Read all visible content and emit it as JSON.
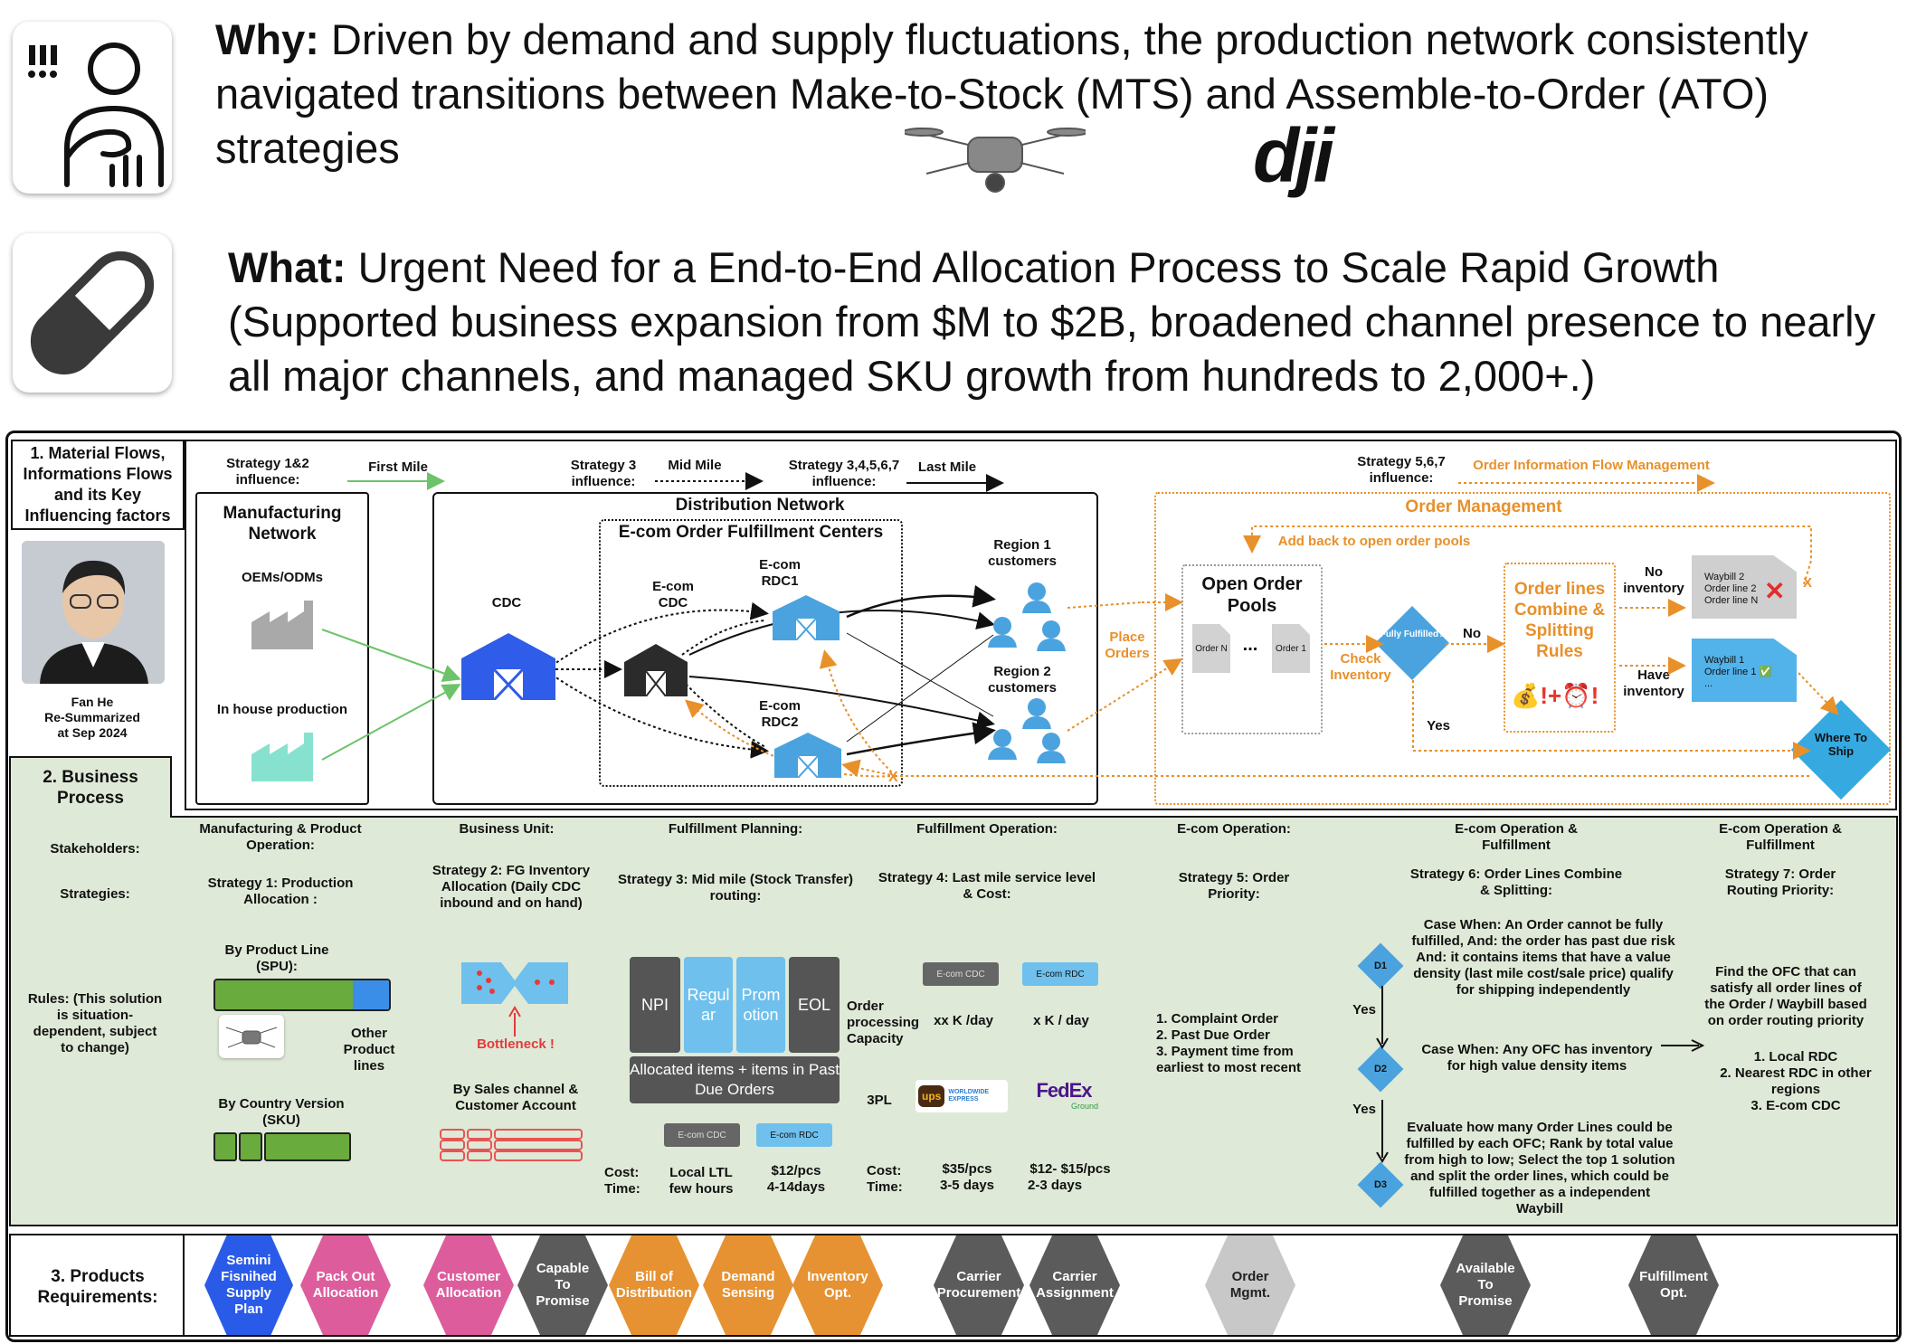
{
  "header": {
    "why_label": "Why:",
    "why_text": " Driven by demand and supply fluctuations, the production network consistently navigated transitions between Make-to-Stock (MTS) and Assemble-to-Order (ATO) strategies",
    "what_label": "What:",
    "what_text": " Urgent Need for a End-to-End Allocation Process to Scale Rapid Growth (Supported business expansion from $M to $2B, broadened channel presence to nearly all major channels, and managed SKU growth from hundreds to 2,000+.)",
    "brand_logo": "dji"
  },
  "sections": {
    "s1": "1. Material Flows, Informations Flows and its Key Influencing factors",
    "s2": "2. Business Process",
    "s3": "3. Products Requirements:"
  },
  "author": {
    "name": "Fan He",
    "line2": "Re-Summarized",
    "line3": "at Sep 2024"
  },
  "flows": {
    "strat12": "Strategy 1&2 influence:",
    "first_mile": "First Mile",
    "strat3": "Strategy 3 influence:",
    "mid_mile": "Mid Mile",
    "strat34567": "Strategy 3,4,5,6,7 influence:",
    "last_mile": "Last Mile",
    "strat567": "Strategy 5,6,7 influence:",
    "oifm": "Order Information Flow Management"
  },
  "network": {
    "mfg_title": "Manufacturing Network",
    "oems": "OEMs/ODMs",
    "inhouse": "In house production",
    "dist_title": "Distribution Network",
    "efc_title": "E-com Order Fulfillment Centers",
    "cdc": "CDC",
    "ecom_cdc": "E-com CDC",
    "rdc1": "E-com RDC1",
    "rdc2": "E-com RDC2",
    "region1": "Region 1 customers",
    "region2": "Region 2 customers"
  },
  "order_mgmt": {
    "title": "Order Management",
    "add_back": "Add back to open order pools",
    "place_orders": "Place Orders",
    "pools": "Open Order Pools",
    "order_n": "Order N",
    "order_1": "Order 1",
    "dots": "...",
    "check_inventory": "Check Inventory",
    "fully": "Fully Fulfilled?",
    "no": "No",
    "yes": "Yes",
    "rules": "Order lines Combine & Splitting Rules",
    "no_inv": "No inventory",
    "have_inv": "Have inventory",
    "wb2_l1": "Waybill 2",
    "wb2_l2": "Order line 2",
    "wb2_l3": "Order line N",
    "wb1_l1": "Waybill 1",
    "wb1_l2": "Order line 1 ✅",
    "wb1_l3": "...",
    "where": "Where To Ship",
    "x_mark": "X"
  },
  "bp": {
    "stakeholders": "Stakeholders:",
    "strategies": "Strategies:",
    "rules": "Rules: (This solution is situation-dependent, subject to change)",
    "cols": [
      {
        "stake": "Manufacturing & Product Operation:",
        "strat": "Strategy 1: Production Allocation :"
      },
      {
        "stake": "Business Unit:",
        "strat": "Strategy 2: FG Inventory Allocation (Daily CDC inbound and on hand)"
      },
      {
        "stake": "Fulfillment Planning:",
        "strat": "Strategy 3: Mid mile (Stock Transfer) routing:"
      },
      {
        "stake": "Fulfillment Operation:",
        "strat": "Strategy 4: Last mile service level & Cost:"
      },
      {
        "stake": "E-com Operation:",
        "strat": "Strategy 5: Order Priority:"
      },
      {
        "stake": "E-com Operation & Fulfillment",
        "strat": "Strategy 6: Order Lines Combine & Splitting:"
      },
      {
        "stake": "E-com Operation & Fulfillment",
        "strat": "Strategy 7: Order Routing Priority:"
      }
    ],
    "s1_pl": "By Product Line (SPU):",
    "s1_other": "Other Product lines",
    "s1_cv": "By Country Version (SKU)",
    "s2_bottleneck": "Bottleneck !",
    "s2_sales": "By Sales channel & Customer Account",
    "s3_npi": "NPI",
    "s3_reg": "Regul ar",
    "s3_prom": "Prom otion",
    "s3_eol": "EOL",
    "s3_alloc": "Allocated items + items in Past Due Orders",
    "chip_cdc": "E-com CDC",
    "chip_rdc": "E-com RDC",
    "cost": "Cost:",
    "time": "Time:",
    "s3_cost1": "Local LTL",
    "s3_time1": "few hours",
    "s3_cost2": "$12/pcs",
    "s3_time2": "4-14days",
    "s4_cap": "Order processing Capacity",
    "s4_k1": "xx K /day",
    "s4_k2": "x K / day",
    "s4_3pl": "3PL",
    "s4_cost1": "$35/pcs",
    "s4_time1": "3-5 days",
    "s4_cost2": "$12- $15/pcs",
    "s4_time2": "2-3 days",
    "ups": "ups",
    "worldwide": "WORLDWIDE EXPRESS",
    "fedex": "FedEx",
    "fedex_sub": "Ground",
    "s5_l1": "1. Complaint Order",
    "s5_l2": "2. Past Due Order",
    "s5_l3": "3. Payment time from earliest to most recent",
    "d1": "D1",
    "d2": "D2",
    "d3": "D3",
    "s6_yes": "Yes",
    "s6_c1": "Case When: An Order cannot be fully fulfilled, And: the order has past due risk And: it contains items that have a value density (last mile cost/sale price) qualify for shipping independently",
    "s6_c2": "Case When: Any OFC has inventory for high value density items",
    "s6_c3": "Evaluate how many Order Lines could be fulfilled by each OFC; Rank by total value from high to low; Select the top 1 solution and split the order lines, which could be fulfilled together as a independent Waybill",
    "s7_find": "Find the OFC that can satisfy all order lines of the Order / Waybill based on order routing priority",
    "s7_l1": "1. Local RDC",
    "s7_l2": "2. Nearest RDC in other regions",
    "s7_l3": "3. E-com CDC"
  },
  "products": [
    {
      "label": "Semini Fisnihed Supply Plan",
      "color": "blue"
    },
    {
      "label": "Pack Out Allocation",
      "color": "pink"
    },
    {
      "label": "Customer Allocation",
      "color": "pink"
    },
    {
      "label": "Capable To Promise",
      "color": "dgray"
    },
    {
      "label": "Bill of Distribution",
      "color": "org"
    },
    {
      "label": "Demand Sensing",
      "color": "org"
    },
    {
      "label": "Inventory Opt.",
      "color": "org"
    },
    {
      "label": "Carrier Procurement",
      "color": "dgray"
    },
    {
      "label": "Carrier Assignment",
      "color": "dgray"
    },
    {
      "label": "Order Mgmt.",
      "color": "lgray"
    },
    {
      "label": "Available To Promise",
      "color": "dgray"
    },
    {
      "label": "Fulfillment Opt.",
      "color": "dgray"
    }
  ]
}
